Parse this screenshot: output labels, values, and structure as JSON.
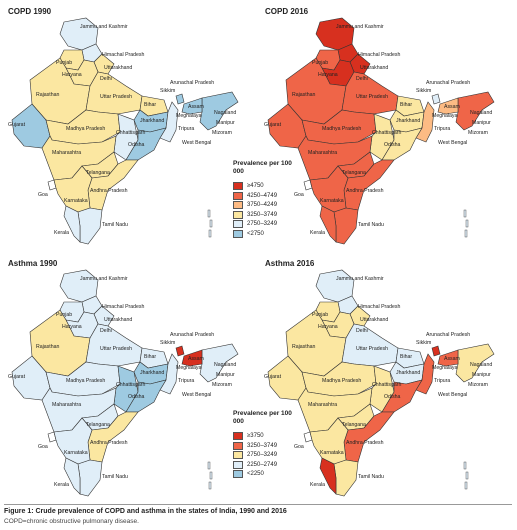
{
  "panels": [
    {
      "title": "COPD 1990"
    },
    {
      "title": "COPD 2016"
    },
    {
      "title": "Asthma 1990"
    },
    {
      "title": "Asthma 2016"
    }
  ],
  "labels": {
    "jk": "Jammu and Kashmir",
    "hp": "Himachal Pradesh",
    "pb": "Punjab",
    "uk": "Uttarakhand",
    "dl": "Delhi",
    "hr": "Haryana",
    "rj": "Rajasthan",
    "up": "Uttar Pradesh",
    "ar": "Arunachal Pradesh",
    "sk": "Sikkim",
    "as": "Assam",
    "nl": "Nagaland",
    "mg": "Meghalaya",
    "mn": "Manipur",
    "bh": "Bihar",
    "jh": "Jharkhand",
    "tr": "Tripura",
    "mz": "Mizoram",
    "gj": "Gujarat",
    "mp": "Madhya Pradesh",
    "ct": "Chhattisgarh",
    "wb": "West Bengal",
    "od": "Odisha",
    "mh": "Maharashtra",
    "tg": "Telangana",
    "ap": "Andhra Pradesh",
    "ga": "Goa",
    "ka": "Karnataka",
    "tn": "Tamil Nadu",
    "kl": "Kerala"
  },
  "legend_copd": {
    "title": "Prevalence per 100 000",
    "items": [
      {
        "label": "≥4750",
        "color": "#d7301f"
      },
      {
        "label": "4250–4749",
        "color": "#ef6548"
      },
      {
        "label": "3750–4249",
        "color": "#fdbb84"
      },
      {
        "label": "3250–3749",
        "color": "#fbe7a1"
      },
      {
        "label": "2750–3249",
        "color": "#e0eef8"
      },
      {
        "label": "<2750",
        "color": "#9ecae1"
      }
    ]
  },
  "legend_asthma": {
    "title": "Prevalence per 100 000",
    "items": [
      {
        "label": "≥3750",
        "color": "#d7301f"
      },
      {
        "label": "3250–3749",
        "color": "#ef6548"
      },
      {
        "label": "2750–3249",
        "color": "#fbe7a1"
      },
      {
        "label": "2250–2749",
        "color": "#e0eef8"
      },
      {
        "label": "<2250",
        "color": "#9ecae1"
      }
    ]
  },
  "fills": {
    "copd1990": {
      "jk": "#e0eef8",
      "hp": "#e0eef8",
      "pb": "#fbe7a1",
      "uk": "#fbe7a1",
      "hr": "#fbe7a1",
      "rj": "#fbe7a1",
      "up": "#fbe7a1",
      "bh": "#fbe7a1",
      "gj": "#9ecae1",
      "mp": "#fbe7a1",
      "ct": "#e0eef8",
      "jh": "#9ecae1",
      "wb": "#e0eef8",
      "od": "#9ecae1",
      "mh": "#fbe7a1",
      "tg": "#fbe7a1",
      "ap": "#fbe7a1",
      "ka": "#fbe7a1",
      "tn": "#e0eef8",
      "kl": "#e0eef8",
      "ne": "#9ecae1",
      "sk": "#9ecae1",
      "as": "#9ecae1"
    },
    "copd2016": {
      "jk": "#d7301f",
      "hp": "#d7301f",
      "pb": "#ef6548",
      "uk": "#d7301f",
      "hr": "#d7301f",
      "rj": "#ef6548",
      "up": "#ef6548",
      "bh": "#fbe7a1",
      "gj": "#ef6548",
      "mp": "#ef6548",
      "ct": "#fbe7a1",
      "jh": "#fbe7a1",
      "wb": "#fdbb84",
      "od": "#fbe7a1",
      "mh": "#ef6548",
      "tg": "#ef6548",
      "ap": "#ef6548",
      "ka": "#ef6548",
      "tn": "#ef6548",
      "kl": "#ef6548",
      "ne": "#ef6548",
      "sk": "#e0eef8",
      "as": "#fdbb84"
    },
    "asthma1990": {
      "jk": "#e0eef8",
      "hp": "#e0eef8",
      "pb": "#e0eef8",
      "uk": "#e0eef8",
      "hr": "#e0eef8",
      "rj": "#fbe7a1",
      "up": "#e0eef8",
      "bh": "#e0eef8",
      "gj": "#e0eef8",
      "mp": "#e0eef8",
      "ct": "#9ecae1",
      "jh": "#9ecae1",
      "wb": "#e0eef8",
      "od": "#9ecae1",
      "mh": "#e0eef8",
      "tg": "#e0eef8",
      "ap": "#fbe7a1",
      "ka": "#e0eef8",
      "tn": "#e0eef8",
      "kl": "#e0eef8",
      "ne": "#e0eef8",
      "sk": "#d7301f",
      "as": "#d7301f"
    },
    "asthma2016": {
      "jk": "#e0eef8",
      "hp": "#e0eef8",
      "pb": "#fbe7a1",
      "uk": "#fbe7a1",
      "hr": "#fbe7a1",
      "rj": "#fbe7a1",
      "up": "#e0eef8",
      "bh": "#e0eef8",
      "gj": "#fbe7a1",
      "mp": "#fbe7a1",
      "ct": "#fbe7a1",
      "jh": "#e0eef8",
      "wb": "#ef6548",
      "od": "#ef6548",
      "mh": "#fbe7a1",
      "tg": "#fbe7a1",
      "ap": "#ef6548",
      "ka": "#fbe7a1",
      "tn": "#fbe7a1",
      "kl": "#d7301f",
      "ne": "#fbe7a1",
      "sk": "#d7301f",
      "as": "#ef6548"
    }
  },
  "caption": {
    "bold": "Figure 1: Crude prevalence of COPD and asthma in the states of India, 1990 and 2016",
    "sub": "COPD=chronic obstructive pulmonary disease."
  }
}
